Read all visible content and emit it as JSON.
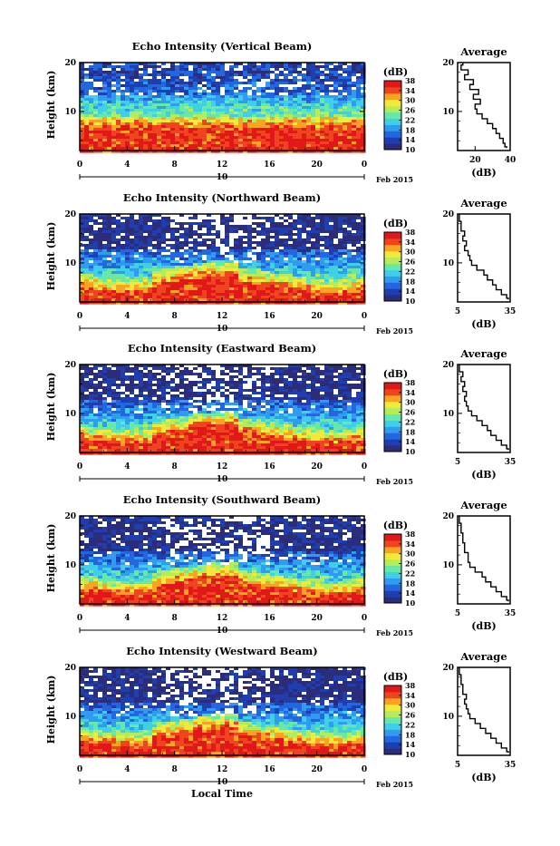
{
  "figure": {
    "xlabel": "Local Time",
    "date_label": "10",
    "month_label": "Feb 2015",
    "avg_title": "Average",
    "avg_xlabel": "(dB)",
    "cbar_label": "(dB)",
    "ylabel": "Height (km)"
  },
  "chart_data": [
    {
      "type": "heatmap",
      "title": "Echo Intensity (Vertical Beam)",
      "xlabel": "Local Time",
      "ylabel": "Height (km)",
      "x_range": [
        0,
        24
      ],
      "x_ticks": [
        "0",
        "4",
        "8",
        "12",
        "16",
        "20",
        "0"
      ],
      "y_range": [
        2,
        20
      ],
      "y_ticks": [
        "10",
        "20"
      ],
      "colorbar": {
        "label": "(dB)",
        "ticks": [
          "10",
          "14",
          "18",
          "22",
          "26",
          "30",
          "34",
          "38"
        ],
        "range": [
          10,
          38
        ]
      }
    },
    {
      "type": "line",
      "title": "Average",
      "xlabel": "(dB)",
      "x_ticks": [
        "20",
        "40"
      ],
      "xlim": [
        10,
        40
      ],
      "y_ticks": [
        "10",
        "20"
      ],
      "ylim": [
        2,
        20
      ],
      "series": [
        {
          "x": [
            38,
            37,
            36,
            34,
            32,
            30,
            27,
            24,
            21,
            20,
            23,
            19,
            22,
            17,
            19,
            14,
            16,
            12,
            13
          ],
          "y": [
            2.5,
            3,
            4,
            5,
            6,
            7,
            8,
            9,
            10,
            11,
            12,
            13,
            14,
            15,
            16,
            17,
            18,
            19,
            20
          ]
        }
      ]
    },
    {
      "type": "heatmap",
      "title": "Echo Intensity (Northward Beam)",
      "xlabel": "Local Time",
      "ylabel": "Height (km)",
      "x_range": [
        0,
        24
      ],
      "x_ticks": [
        "0",
        "4",
        "8",
        "12",
        "16",
        "20",
        "0"
      ],
      "y_range": [
        2,
        20
      ],
      "y_ticks": [
        "10",
        "20"
      ],
      "colorbar": {
        "label": "(dB)",
        "ticks": [
          "10",
          "14",
          "18",
          "22",
          "26",
          "30",
          "34",
          "38"
        ],
        "range": [
          10,
          38
        ]
      }
    },
    {
      "type": "line",
      "title": "Average",
      "xlabel": "(dB)",
      "x_ticks": [
        "5",
        "35"
      ],
      "xlim": [
        5,
        35
      ],
      "y_ticks": [
        "10",
        "20"
      ],
      "ylim": [
        2,
        20
      ],
      "series": [
        {
          "x": [
            34,
            33,
            30,
            27,
            25,
            22,
            20,
            16,
            13,
            12,
            11,
            9,
            10,
            8,
            9,
            7,
            7,
            6,
            6
          ],
          "y": [
            2.5,
            3,
            4,
            5,
            6,
            7,
            8,
            9,
            10,
            11,
            12,
            13,
            14,
            15,
            16,
            17,
            18,
            19,
            20
          ]
        }
      ]
    },
    {
      "type": "heatmap",
      "title": "Echo Intensity (Eastward Beam)",
      "xlabel": "Local Time",
      "ylabel": "Height (km)",
      "x_range": [
        0,
        24
      ],
      "x_ticks": [
        "0",
        "4",
        "8",
        "12",
        "16",
        "20",
        "0"
      ],
      "y_range": [
        2,
        20
      ],
      "y_ticks": [
        "10",
        "20"
      ],
      "colorbar": {
        "label": "(dB)",
        "ticks": [
          "10",
          "14",
          "18",
          "22",
          "26",
          "30",
          "34",
          "38"
        ],
        "range": [
          10,
          38
        ]
      }
    },
    {
      "type": "line",
      "title": "Average",
      "xlabel": "(dB)",
      "x_ticks": [
        "5",
        "35"
      ],
      "xlim": [
        5,
        35
      ],
      "y_ticks": [
        "10",
        "20"
      ],
      "ylim": [
        2,
        20
      ],
      "series": [
        {
          "x": [
            34,
            33,
            30,
            27,
            24,
            22,
            19,
            16,
            13,
            11,
            10,
            9,
            10,
            8,
            9,
            7,
            8,
            6,
            6
          ],
          "y": [
            2.5,
            3,
            4,
            5,
            6,
            7,
            8,
            9,
            10,
            11,
            12,
            13,
            14,
            15,
            16,
            17,
            18,
            19,
            20
          ]
        }
      ]
    },
    {
      "type": "heatmap",
      "title": "Echo Intensity (Southward Beam)",
      "xlabel": "Local Time",
      "ylabel": "Height (km)",
      "x_range": [
        0,
        24
      ],
      "x_ticks": [
        "0",
        "4",
        "8",
        "12",
        "16",
        "20",
        "0"
      ],
      "y_range": [
        2,
        20
      ],
      "y_ticks": [
        "10",
        "20"
      ],
      "colorbar": {
        "label": "(dB)",
        "ticks": [
          "10",
          "14",
          "18",
          "22",
          "26",
          "30",
          "34",
          "38"
        ],
        "range": [
          10,
          38
        ]
      }
    },
    {
      "type": "line",
      "title": "Average",
      "xlabel": "(dB)",
      "x_ticks": [
        "5",
        "35"
      ],
      "xlim": [
        5,
        35
      ],
      "y_ticks": [
        "10",
        "20"
      ],
      "ylim": [
        2,
        20
      ],
      "series": [
        {
          "x": [
            34,
            33,
            30,
            27,
            24,
            21,
            19,
            15,
            12,
            11,
            11,
            9,
            9,
            8,
            8,
            7,
            7,
            6,
            6
          ],
          "y": [
            2.5,
            3,
            4,
            5,
            6,
            7,
            8,
            9,
            10,
            11,
            12,
            13,
            14,
            15,
            16,
            17,
            18,
            19,
            20
          ]
        }
      ]
    },
    {
      "type": "heatmap",
      "title": "Echo Intensity (Westward Beam)",
      "xlabel": "Local Time",
      "ylabel": "Height (km)",
      "x_range": [
        0,
        24
      ],
      "x_ticks": [
        "0",
        "4",
        "8",
        "12",
        "16",
        "20",
        "0"
      ],
      "y_range": [
        2,
        20
      ],
      "y_ticks": [
        "10",
        "20"
      ],
      "colorbar": {
        "label": "(dB)",
        "ticks": [
          "10",
          "14",
          "18",
          "22",
          "26",
          "30",
          "34",
          "38"
        ],
        "range": [
          10,
          38
        ]
      }
    },
    {
      "type": "line",
      "title": "Average",
      "xlabel": "(dB)",
      "x_ticks": [
        "5",
        "35"
      ],
      "xlim": [
        5,
        35
      ],
      "y_ticks": [
        "10",
        "20"
      ],
      "ylim": [
        2,
        20
      ],
      "series": [
        {
          "x": [
            34,
            33,
            30,
            27,
            24,
            21,
            18,
            15,
            12,
            11,
            10,
            9,
            10,
            8,
            8,
            7,
            7,
            6,
            6
          ],
          "y": [
            2.5,
            3,
            4,
            5,
            6,
            7,
            8,
            9,
            10,
            11,
            12,
            13,
            14,
            15,
            16,
            17,
            18,
            19,
            20
          ]
        }
      ]
    }
  ],
  "colors": {
    "colormap": [
      "#2b2c7a",
      "#1f3fb0",
      "#2266e0",
      "#2f9cf0",
      "#3fd0e8",
      "#66e8a8",
      "#b4ec5a",
      "#f2ea3a",
      "#f8a420",
      "#f04420",
      "#e01818"
    ],
    "missing": "#ffffff"
  }
}
